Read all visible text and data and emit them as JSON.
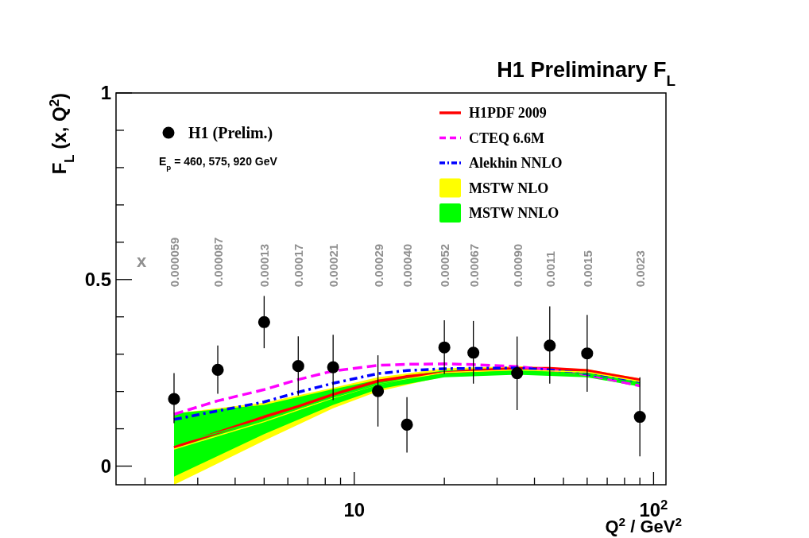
{
  "chart_data": {
    "type": "line",
    "title": "H1 Preliminary F$_{L}$",
    "xlabel": "Q$^{2}$ / GeV$^{2}$",
    "ylabel": "F$_{L}$ (x, Q$^{2}$)",
    "log": "x",
    "xlim": [
      1.6,
      110
    ],
    "ylim": [
      -0.05,
      1
    ],
    "xticks": [
      {
        "value": 2,
        "label": null
      },
      {
        "value": 3,
        "label": null
      },
      {
        "value": 4,
        "label": null
      },
      {
        "value": 5,
        "label": null
      },
      {
        "value": 6,
        "label": null
      },
      {
        "value": 7,
        "label": null
      },
      {
        "value": 8,
        "label": null
      },
      {
        "value": 9,
        "label": null
      },
      10,
      {
        "value": 20,
        "label": null
      },
      {
        "value": 30,
        "label": null
      },
      {
        "value": 40,
        "label": null
      },
      {
        "value": 50,
        "label": null
      },
      {
        "value": 60,
        "label": null
      },
      {
        "value": 70,
        "label": null
      },
      {
        "value": 80,
        "label": null
      },
      {
        "value": 90,
        "label": null
      },
      {
        "value": 100,
        "label": "10$^{2}$"
      }
    ],
    "yticks": [
      0,
      {
        "value": 0.1,
        "label": null
      },
      {
        "value": 0.2,
        "label": null
      },
      {
        "value": 0.3,
        "label": null
      },
      {
        "value": 0.4,
        "label": null
      },
      0.5,
      {
        "value": 0.6,
        "label": null
      },
      {
        "value": 0.7,
        "label": null
      },
      {
        "value": 0.8,
        "label": null
      },
      {
        "value": 0.9,
        "label": null
      },
      1
    ],
    "grid": false,
    "legend": "top",
    "series": [
      {
        "name": "H1PDF 2009",
        "type": "line",
        "color": "#ff0000",
        "line_style": "solid",
        "x": [
          2.5,
          3.5,
          5,
          6.5,
          8.5,
          12,
          15,
          20,
          25,
          35,
          45,
          60,
          90
        ],
        "values": [
          0.05,
          0.09,
          0.132,
          0.16,
          0.192,
          0.228,
          0.24,
          0.25,
          0.256,
          0.262,
          0.262,
          0.256,
          0.231
        ]
      },
      {
        "name": "CTEQ 6.6M",
        "type": "line",
        "color": "#ff00ff",
        "line_style": "dashed",
        "x": [
          2.5,
          3.5,
          5,
          6.5,
          8.5,
          12,
          15,
          20,
          25,
          35,
          45,
          60,
          90
        ],
        "values": [
          0.139,
          0.175,
          0.205,
          0.232,
          0.255,
          0.27,
          0.273,
          0.274,
          0.272,
          0.267,
          0.258,
          0.245,
          0.215
        ]
      },
      {
        "name": "Alekhin NNLO",
        "type": "line",
        "color": "#0000ff",
        "line_style": "dashdot",
        "x": [
          2.5,
          3.5,
          5,
          6.5,
          8.5,
          12,
          15,
          20,
          25,
          35,
          45,
          60,
          90
        ],
        "values": [
          0.125,
          0.148,
          0.172,
          0.198,
          0.222,
          0.248,
          0.256,
          0.261,
          0.262,
          0.263,
          0.258,
          0.247,
          0.224
        ]
      },
      {
        "name": "MSTW NLO",
        "type": "line",
        "color": "#ffff00",
        "x": [
          2.5,
          5,
          8.5,
          12,
          20,
          35,
          60,
          90
        ],
        "values": [
          0.046,
          0.119,
          0.183,
          0.219,
          0.251,
          0.258,
          0.252,
          0.227
        ],
        "lower": [
          -0.05,
          0.068,
          0.155,
          0.2,
          0.24,
          0.248,
          0.243,
          0.218
        ],
        "upper": [
          0.141,
          0.17,
          0.21,
          0.238,
          0.262,
          0.268,
          0.26,
          0.235
        ]
      },
      {
        "name": "MSTW NNLO",
        "type": "line",
        "color": "#00ff00",
        "x": [
          2.5,
          5,
          8.5,
          12,
          20,
          35,
          60,
          90
        ],
        "values": [
          0.057,
          0.125,
          0.185,
          0.219,
          0.247,
          0.254,
          0.247,
          0.221
        ],
        "lower": [
          -0.028,
          0.086,
          0.164,
          0.206,
          0.238,
          0.245,
          0.238,
          0.213
        ],
        "upper": [
          0.141,
          0.164,
          0.206,
          0.231,
          0.256,
          0.262,
          0.256,
          0.228
        ]
      },
      {
        "name": "H1 (Prelim.)",
        "type": "scatter",
        "color": "#000000",
        "marker": "circle",
        "x": [
          2.5,
          3.5,
          5,
          6.5,
          8.5,
          12,
          15,
          20,
          25,
          35,
          45,
          60,
          90
        ],
        "values": [
          0.18,
          0.258,
          0.386,
          0.268,
          0.265,
          0.201,
          0.111,
          0.318,
          0.304,
          0.249,
          0.323,
          0.302,
          0.132
        ],
        "errors": [
          [
            0.115,
            0.249
          ],
          [
            0.194,
            0.323
          ],
          [
            0.316,
            0.456
          ],
          [
            0.189,
            0.348
          ],
          [
            0.177,
            0.352
          ],
          [
            0.106,
            0.297
          ],
          [
            0.036,
            0.185
          ],
          [
            0.247,
            0.391
          ],
          [
            0.221,
            0.389
          ],
          [
            0.15,
            0.347
          ],
          [
            0.221,
            0.428
          ],
          [
            0.199,
            0.405
          ],
          [
            0.026,
            0.238
          ]
        ]
      }
    ],
    "annotations": [
      "E$_{p}$ = 460, 575, 920 GeV",
      "x",
      "0.000059",
      "0.000087",
      "0.00013",
      "0.00017",
      "0.00021",
      "0.00029",
      "0.00040",
      "0.00052",
      "0.00067",
      "0.00090",
      "0.0011",
      "0.0015",
      "0.0023"
    ]
  }
}
